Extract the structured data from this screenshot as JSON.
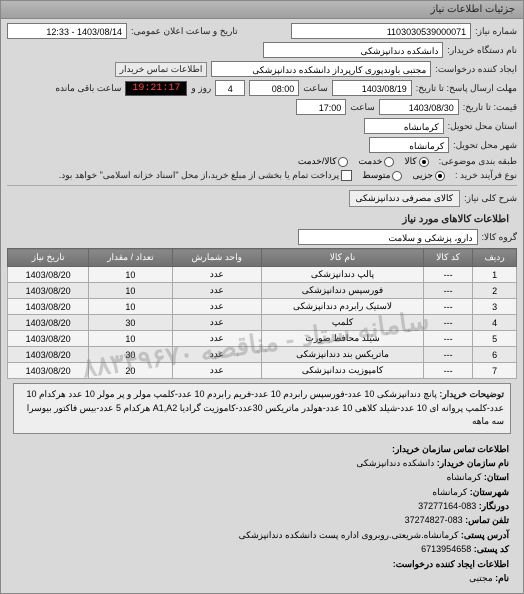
{
  "panel_title": "جزئیات اطلاعات نیاز",
  "header": {
    "req_no_label": "شماره نیاز:",
    "req_no": "1103030539000071",
    "announce_label": "تاریخ و ساعت اعلان عمومی:",
    "announce_value": "1403/08/14 - 12:33"
  },
  "buyer": {
    "org_label": "نام دستگاه خریدار:",
    "org_value": "دانشکده دندانپزشکی",
    "creator_label": "ایجاد کننده درخواست:",
    "creator_value": "مجتبی  باوندپوری کارپرداز دانشکده دندانپزشکی",
    "contact_label": "اطلاعات تماس خریدار"
  },
  "deadlines": {
    "send_until_label": "مهلت ارسال پاسخ: تا تاریخ:",
    "send_date": "1403/08/19",
    "send_time_label": "ساعت",
    "send_time": "08:00",
    "days_label": "روز و",
    "days": "4",
    "remain_label": "ساعت باقی مانده",
    "timer": "19:21:17",
    "price_until_label": "قیمت: تا تاریخ:",
    "price_date": "1403/08/30",
    "price_time": "17:00"
  },
  "location": {
    "state_label": "استان محل تحویل:",
    "state_value": "کرمانشاه",
    "city_label": "شهر محل تحویل:",
    "city_value": "کرمانشاه"
  },
  "classification": {
    "group_label": "طبقه بندی موضوعی:",
    "opt_kala": "کالا",
    "opt_khadamat": "خدمت",
    "opt_kala_khadamat": "کالا/خدمت",
    "buy_type_label": "نوع فرآیند خرید :",
    "opt_jozi": "جزیی",
    "opt_motevaset": "متوسط",
    "note": "پرداخت تمام یا بخشی از مبلغ خرید،از محل \"اسناد خزانه اسلامی\" خواهد بود."
  },
  "need": {
    "title_label": "شرح کلی نیاز:",
    "title_value": "کالای مصرفی دندانپزشکی",
    "section": "اطلاعات کالاهای مورد نیاز",
    "group_label": "گروه کالا:",
    "group_value": "دارو، پزشکی و سلامت"
  },
  "table": {
    "cols": [
      "ردیف",
      "کد کالا",
      "نام کالا",
      "واحد شمارش",
      "تعداد / مقدار",
      "تاریخ نیاز"
    ],
    "rows": [
      [
        "1",
        "---",
        "پالپ دندانپزشکی",
        "عدد",
        "10",
        "1403/08/20"
      ],
      [
        "2",
        "---",
        "فورسپس دندانپزشکی",
        "عدد",
        "10",
        "1403/08/20"
      ],
      [
        "3",
        "---",
        "لاستیک رابردم دندانپزشکی",
        "عدد",
        "10",
        "1403/08/20"
      ],
      [
        "4",
        "---",
        "کلمپ",
        "عدد",
        "30",
        "1403/08/20"
      ],
      [
        "5",
        "---",
        "شیلد محافظ صورت",
        "عدد",
        "10",
        "1403/08/20"
      ],
      [
        "6",
        "---",
        "ماتریکس بند دندانپزشکی",
        "عدد",
        "30",
        "1403/08/20"
      ],
      [
        "7",
        "---",
        "کامپوزیت دندانپزشکی",
        "عدد",
        "20",
        "1403/08/20"
      ]
    ]
  },
  "watermark": "سامانه ستاد - مناقصه ۸۸۳۴۹۶۷۰",
  "buyer_notes": {
    "label": "توضیحات خریدار:",
    "text": "پانچ دندانپزشکی 10 عدد-فورسپس رابردم 10 عدد-فریم رابردم 10 عدد-کلمپ مولر و پر مولر 10 عدد هرکدام 10 عدد-کلمپ پروانه ای 10 عدد-شیلد کلاهی 10 عدد-هولدر ماتریکس 30عدد-کاموزیت گرادیا A1,A2 هرکدام 5 عدد-بیس فاکتور بیوسرا سه ماهه"
  },
  "contact": {
    "header": "اطلاعات تماس سازمان خریدار:",
    "org_label": "نام سازمان خریدار:",
    "org": "دانشکده دندانپزشکی",
    "state_label": "استان:",
    "state": "کرمانشاه",
    "city_label": "شهرستان:",
    "city": "کرمانشاه",
    "nec_label": "دورنگار:",
    "nec": "083-37277164",
    "tel_label": "تلفن تماس:",
    "tel": "083-37274827",
    "addr_label": "آدرس پستی:",
    "addr": "کرمانشاه.شریعتی.روبروی اداره پست دانشکده دندانپزشکی",
    "post_label": "کد پستی:",
    "post": "6713954658",
    "creator_label": "اطلاعات ایجاد کننده درخواست:",
    "name_label": "نام:",
    "name": "مجتبی"
  }
}
